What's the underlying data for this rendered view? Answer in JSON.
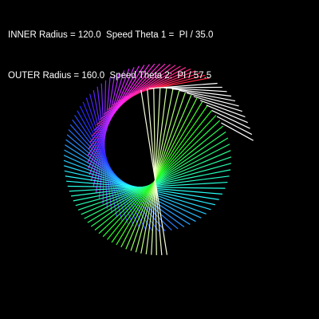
{
  "info": {
    "line1": "INNER Radius = 120.0  Speed Theta 1 =  PI / 35.0",
    "line2": "OUTER Radius = 160.0  Speed Theta 2:  PI / 57.5"
  },
  "sketch": {
    "inner_radius": 120.0,
    "outer_radius": 160.0,
    "theta1_divisor": 35.0,
    "theta2_divisor": 57.5,
    "background": "#000000"
  }
}
